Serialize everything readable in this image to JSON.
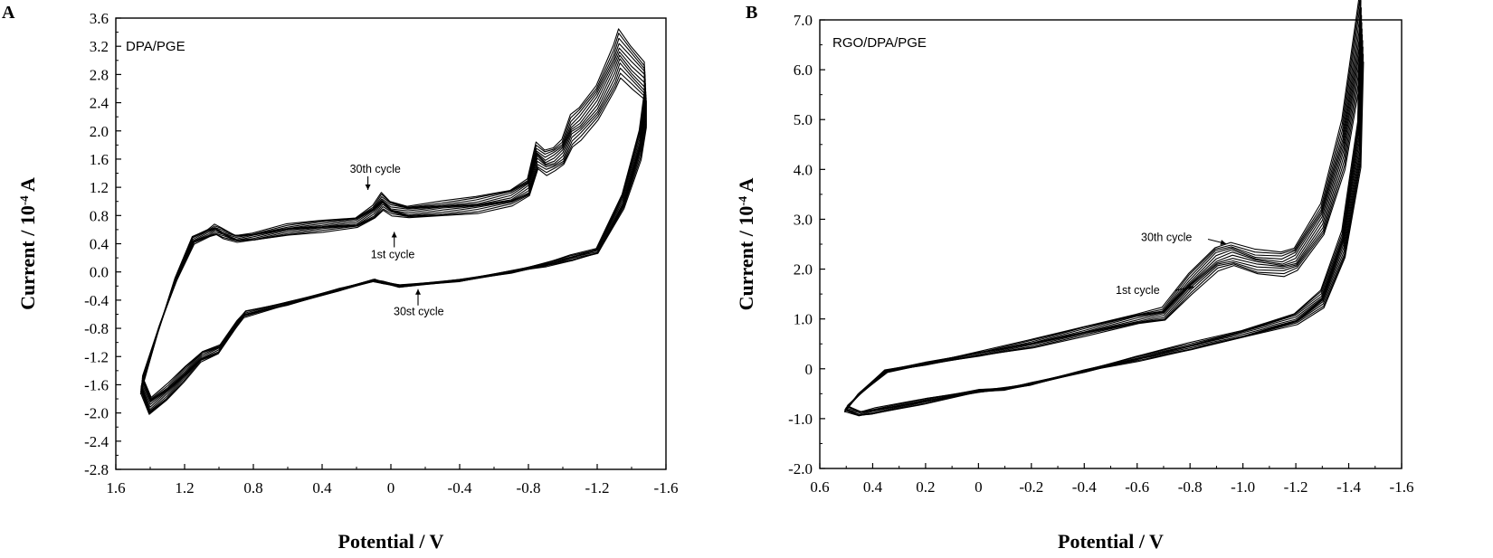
{
  "chart_data": [
    {
      "type": "line",
      "panel": "A",
      "inset_label": "DPA/PGE",
      "xlabel": "Potential / V",
      "ylabel": "Current / 10-4 A",
      "xlim": [
        1.6,
        -1.6
      ],
      "ylim": [
        -2.8,
        3.6
      ],
      "x_ticks": [
        "1.6",
        "1.2",
        "0.8",
        "0.4",
        "0",
        "-0.4",
        "-0.8",
        "-1.2",
        "-1.6"
      ],
      "y_ticks": [
        "-2.8",
        "-2.4",
        "-2.0",
        "-1.6",
        "-1.2",
        "-0.8",
        "-0.4",
        "0.0",
        "0.4",
        "0.8",
        "1.2",
        "1.6",
        "2.0",
        "2.4",
        "2.8",
        "3.2",
        "3.6"
      ],
      "cycles": 30,
      "annotations": [
        {
          "text": "30th  cycle",
          "x": 0.06,
          "y": 1.15
        },
        {
          "text": "1st  cycle",
          "x": -0.03,
          "y": 0.58
        },
        {
          "text": "30st  cycle",
          "x": -0.2,
          "y": -0.27
        }
      ],
      "series": [
        {
          "x": [
            1.45,
            1.35,
            1.25,
            1.15,
            1.06,
            1.02,
            0.98,
            0.9,
            0.8,
            0.6,
            0.4,
            0.2,
            0.1,
            0.05,
            0.0,
            -0.1,
            -0.3,
            -0.5,
            -0.7,
            -0.8,
            -0.85,
            -0.9,
            -0.95,
            -1.0,
            -1.05,
            -1.1,
            -1.2,
            -1.3,
            -1.33,
            -1.4,
            -1.48,
            -1.48,
            -1.45,
            -1.35,
            -1.2,
            -1.05,
            -0.9,
            -0.7,
            -0.4,
            -0.05,
            0.05,
            0.1,
            0.3,
            0.6,
            0.85,
            0.9,
            1.0,
            1.1,
            1.2,
            1.3,
            1.4,
            1.45
          ],
          "y": [
            -1.6,
            -0.8,
            -0.1,
            0.45,
            0.55,
            0.6,
            0.55,
            0.47,
            0.5,
            0.6,
            0.65,
            0.7,
            0.85,
            1.0,
            0.9,
            0.85,
            0.9,
            0.95,
            1.05,
            1.2,
            1.65,
            1.55,
            1.6,
            1.7,
            2.0,
            2.1,
            2.4,
            2.9,
            3.1,
            2.9,
            2.7,
            2.3,
            1.8,
            1.0,
            0.3,
            0.2,
            0.1,
            0.0,
            -0.12,
            -0.2,
            -0.15,
            -0.12,
            -0.25,
            -0.45,
            -0.6,
            -0.75,
            -1.1,
            -1.2,
            -1.45,
            -1.7,
            -1.9,
            -1.6
          ]
        }
      ]
    },
    {
      "type": "line",
      "panel": "B",
      "inset_label": "RGO/DPA/PGE",
      "xlabel": "Potential / V",
      "ylabel": "Current / 10-4 A",
      "xlim": [
        0.6,
        -1.6
      ],
      "ylim": [
        -2.0,
        7.0
      ],
      "x_ticks": [
        "0.6",
        "0.4",
        "0.2",
        "0",
        "-0.2",
        "-0.4",
        "-0.6",
        "-0.8",
        "-1.0",
        "-1.2",
        "-1.4",
        "-1.6"
      ],
      "y_ticks": [
        "-2.0",
        "-1.0",
        "0",
        "1.0",
        "2.0",
        "3.0",
        "4.0",
        "5.0",
        "6.0",
        "7.0"
      ],
      "cycles": 30,
      "annotations": [
        {
          "text": "30th  cycle",
          "x": -0.95,
          "y": 2.4
        },
        {
          "text": "1st  cycle",
          "x": -0.82,
          "y": 1.9
        }
      ],
      "series": [
        {
          "x": [
            0.5,
            0.45,
            0.35,
            0.2,
            0.0,
            -0.2,
            -0.4,
            -0.6,
            -0.7,
            -0.8,
            -0.9,
            -0.96,
            -1.05,
            -1.15,
            -1.2,
            -1.3,
            -1.38,
            -1.45,
            -1.44,
            -1.38,
            -1.3,
            -1.2,
            -1.0,
            -0.8,
            -0.6,
            -0.4,
            -0.2,
            -0.1,
            0.0,
            0.2,
            0.4,
            0.45,
            0.5
          ],
          "y": [
            -0.8,
            -0.5,
            -0.05,
            0.1,
            0.3,
            0.5,
            0.75,
            1.0,
            1.1,
            1.7,
            2.2,
            2.3,
            2.15,
            2.1,
            2.2,
            3.0,
            4.5,
            6.9,
            4.5,
            2.5,
            1.4,
            1.0,
            0.7,
            0.45,
            0.2,
            -0.05,
            -0.3,
            -0.4,
            -0.45,
            -0.65,
            -0.85,
            -0.9,
            -0.8
          ]
        }
      ]
    }
  ],
  "panels": {
    "a": {
      "letter": "A",
      "ylabel_main": "Current / 10",
      "ylabel_exp": "-4",
      "ylabel_unit": " A"
    },
    "b": {
      "letter": "B",
      "ylabel_main": "Current / 10",
      "ylabel_exp": "-4",
      "ylabel_unit": " A"
    }
  }
}
